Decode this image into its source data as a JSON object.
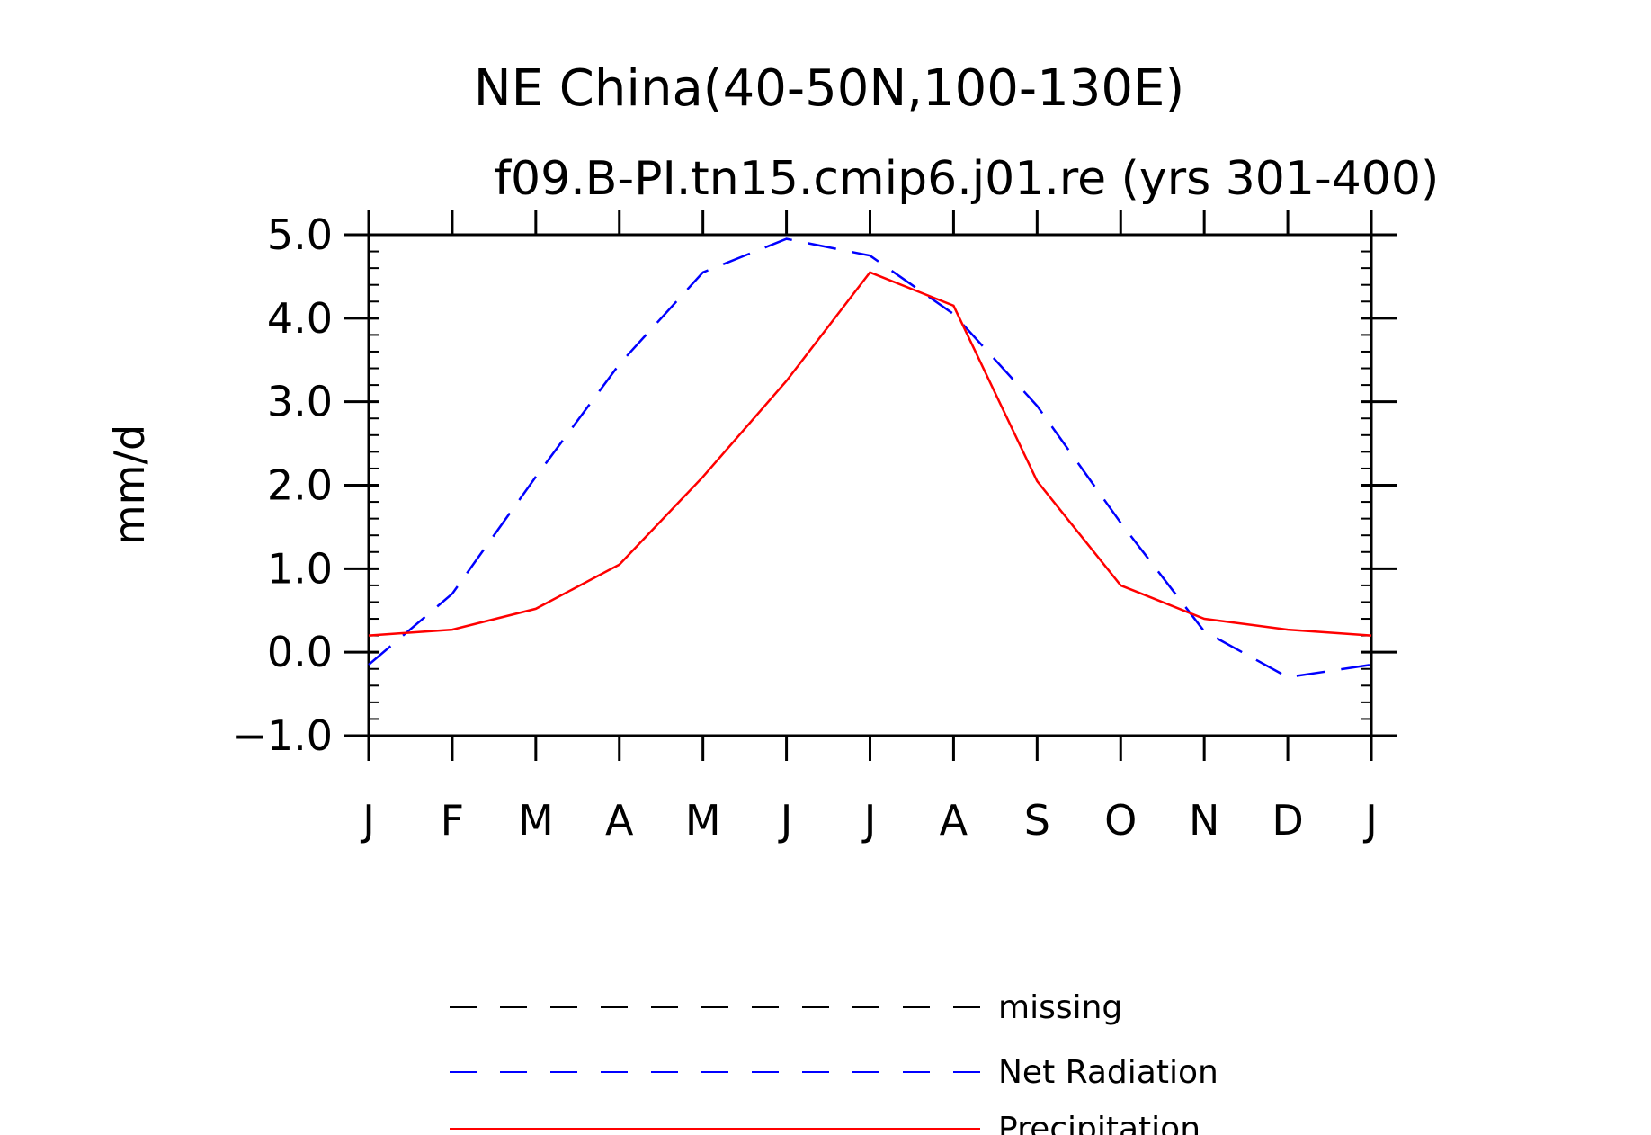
{
  "chart_data": {
    "type": "line",
    "title": "NE China(40-50N,100-130E)",
    "subtitle": "f09.B-PI.tn15.cmip6.j01.re (yrs 301-400)",
    "xlabel": "",
    "ylabel": "mm/d",
    "categories": [
      "J",
      "F",
      "M",
      "A",
      "M",
      "J",
      "J",
      "A",
      "S",
      "O",
      "N",
      "D",
      "J"
    ],
    "ylim": [
      -1.0,
      5.0
    ],
    "yticks": [
      "5.0",
      "4.0",
      "3.0",
      "2.0",
      "1.0",
      "0.0",
      "−1.0"
    ],
    "series": [
      {
        "name": "Net Radiation",
        "color": "#0000ff",
        "dash": "dashed",
        "values": [
          -0.15,
          0.7,
          2.1,
          3.45,
          4.55,
          4.95,
          4.75,
          4.05,
          2.95,
          1.55,
          0.25,
          -0.3,
          -0.15
        ]
      },
      {
        "name": "Precipitation",
        "color": "#ff0000",
        "dash": "solid",
        "values": [
          0.2,
          0.27,
          0.52,
          1.05,
          2.1,
          3.25,
          4.55,
          4.15,
          2.05,
          0.8,
          0.4,
          0.27,
          0.2
        ]
      }
    ],
    "legend": {
      "position": "bottom",
      "entries": [
        {
          "label": "missing",
          "color": "#000000",
          "dash": "dashed"
        },
        {
          "label": "Net Radiation",
          "color": "#0000ff",
          "dash": "dashed"
        },
        {
          "label": "Precipitation",
          "color": "#ff0000",
          "dash": "solid"
        }
      ]
    },
    "grid": false
  }
}
